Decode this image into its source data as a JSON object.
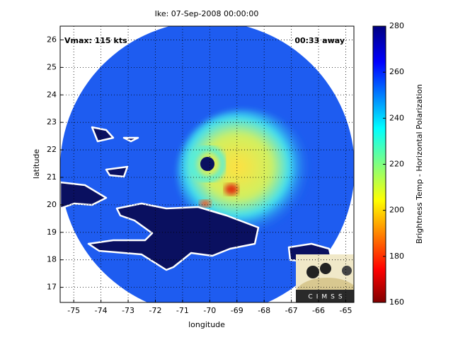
{
  "chart_data": {
    "type": "map",
    "title": "Ike: 07-Sep-2008 00:00:00",
    "annotations": [
      "Vmax: 115 kts",
      "00:33 away"
    ],
    "x_label": "longitude",
    "y_label": "latitude",
    "xlim": [
      -75.5,
      -64.7
    ],
    "ylim": [
      16.45,
      26.5
    ],
    "xticks": [
      -75,
      -74,
      -73,
      -72,
      -71,
      -70,
      -69,
      -68,
      -67,
      -66,
      -65
    ],
    "yticks": [
      17,
      18,
      19,
      20,
      21,
      22,
      23,
      24,
      25,
      26
    ],
    "grid": true,
    "colorbar": {
      "label": "Brightness Temp - Horizontal Polarization",
      "lim": [
        160,
        280
      ],
      "ticks": [
        160,
        180,
        200,
        220,
        240,
        260,
        280
      ]
    },
    "logo": "CIMSS"
  }
}
